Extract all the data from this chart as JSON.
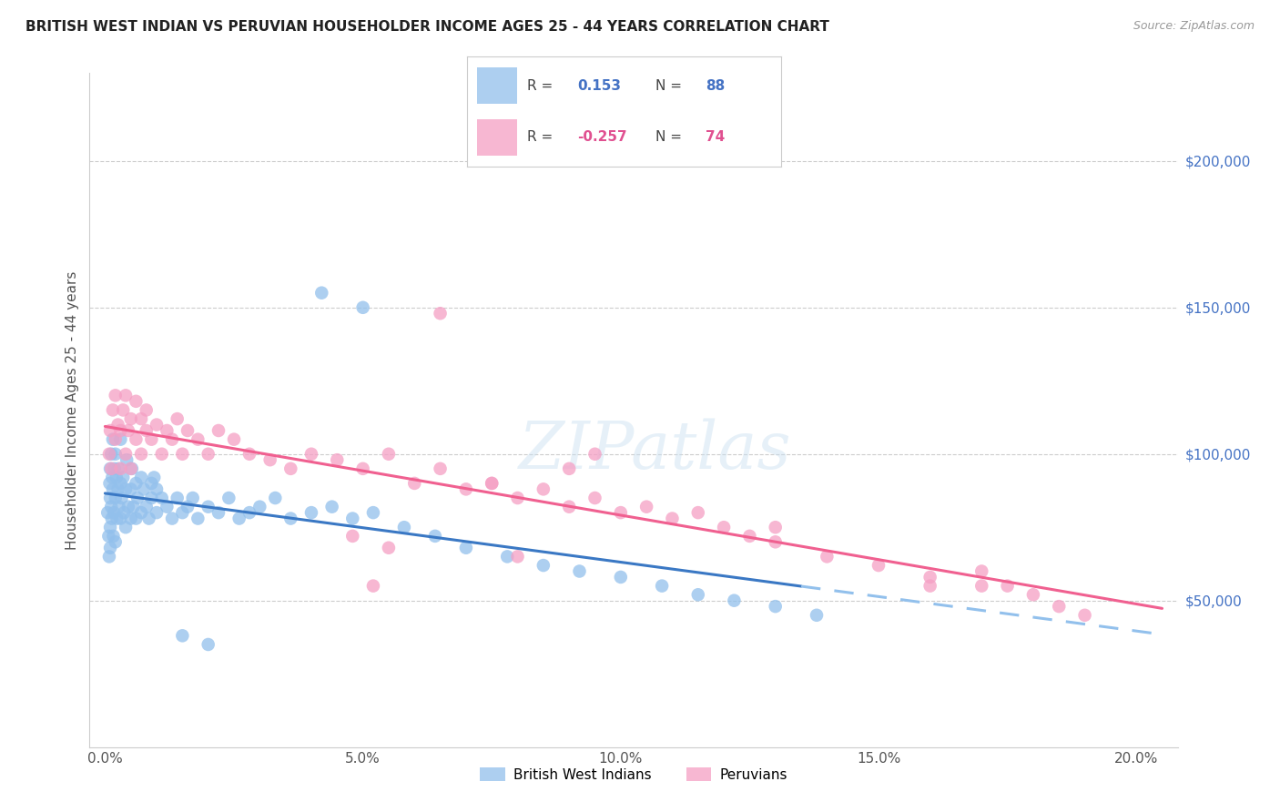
{
  "title": "BRITISH WEST INDIAN VS PERUVIAN HOUSEHOLDER INCOME AGES 25 - 44 YEARS CORRELATION CHART",
  "source": "Source: ZipAtlas.com",
  "ylabel": "Householder Income Ages 25 - 44 years",
  "xlabel_ticks": [
    "0.0%",
    "5.0%",
    "10.0%",
    "15.0%",
    "20.0%"
  ],
  "xlabel_vals": [
    0.0,
    0.05,
    0.1,
    0.15,
    0.2
  ],
  "ytick_labels": [
    "$50,000",
    "$100,000",
    "$150,000",
    "$200,000"
  ],
  "ytick_vals": [
    50000,
    100000,
    150000,
    200000
  ],
  "ylim": [
    0,
    230000
  ],
  "xlim": [
    -0.003,
    0.208
  ],
  "r_blue": 0.153,
  "n_blue": 88,
  "r_pink": -0.257,
  "n_pink": 74,
  "legend_label_blue": "British West Indians",
  "legend_label_pink": "Peruvians",
  "blue_color": "#92c0ec",
  "pink_color": "#f59fc4",
  "trendline_blue_solid_color": "#3a78c4",
  "trendline_pink_solid_color": "#f06090",
  "trendline_blue_dash_color": "#92c0ec",
  "watermark": "ZIPatlas",
  "blue_scatter_x": [
    0.0005,
    0.0007,
    0.0008,
    0.0009,
    0.001,
    0.001,
    0.001,
    0.001,
    0.0012,
    0.0012,
    0.0013,
    0.0014,
    0.0015,
    0.0015,
    0.0016,
    0.0017,
    0.0018,
    0.002,
    0.002,
    0.002,
    0.0022,
    0.0023,
    0.0025,
    0.0026,
    0.0027,
    0.003,
    0.003,
    0.003,
    0.0032,
    0.0035,
    0.0037,
    0.004,
    0.004,
    0.0042,
    0.0045,
    0.005,
    0.005,
    0.0052,
    0.0055,
    0.006,
    0.006,
    0.0063,
    0.007,
    0.007,
    0.0075,
    0.008,
    0.0085,
    0.009,
    0.009,
    0.0095,
    0.01,
    0.01,
    0.011,
    0.012,
    0.013,
    0.014,
    0.015,
    0.016,
    0.017,
    0.018,
    0.02,
    0.022,
    0.024,
    0.026,
    0.028,
    0.03,
    0.033,
    0.036,
    0.04,
    0.044,
    0.048,
    0.052,
    0.058,
    0.064,
    0.07,
    0.078,
    0.085,
    0.092,
    0.1,
    0.108,
    0.115,
    0.122,
    0.13,
    0.138,
    0.042,
    0.05,
    0.015,
    0.02
  ],
  "blue_scatter_y": [
    80000,
    72000,
    65000,
    90000,
    68000,
    85000,
    95000,
    75000,
    82000,
    100000,
    78000,
    92000,
    88000,
    105000,
    72000,
    80000,
    95000,
    85000,
    70000,
    100000,
    92000,
    78000,
    88000,
    95000,
    82000,
    78000,
    90000,
    105000,
    85000,
    92000,
    80000,
    88000,
    75000,
    98000,
    82000,
    88000,
    78000,
    95000,
    82000,
    90000,
    78000,
    85000,
    92000,
    80000,
    88000,
    82000,
    78000,
    90000,
    85000,
    92000,
    80000,
    88000,
    85000,
    82000,
    78000,
    85000,
    80000,
    82000,
    85000,
    78000,
    82000,
    80000,
    85000,
    78000,
    80000,
    82000,
    85000,
    78000,
    80000,
    82000,
    78000,
    80000,
    75000,
    72000,
    68000,
    65000,
    62000,
    60000,
    58000,
    55000,
    52000,
    50000,
    48000,
    45000,
    155000,
    150000,
    38000,
    35000
  ],
  "pink_scatter_x": [
    0.0008,
    0.001,
    0.0012,
    0.0015,
    0.002,
    0.002,
    0.0025,
    0.003,
    0.003,
    0.0035,
    0.004,
    0.004,
    0.0045,
    0.005,
    0.005,
    0.006,
    0.006,
    0.007,
    0.007,
    0.008,
    0.008,
    0.009,
    0.01,
    0.011,
    0.012,
    0.013,
    0.014,
    0.015,
    0.016,
    0.018,
    0.02,
    0.022,
    0.025,
    0.028,
    0.032,
    0.036,
    0.04,
    0.045,
    0.05,
    0.055,
    0.06,
    0.065,
    0.07,
    0.075,
    0.08,
    0.085,
    0.09,
    0.095,
    0.1,
    0.105,
    0.11,
    0.115,
    0.12,
    0.125,
    0.13,
    0.14,
    0.15,
    0.16,
    0.17,
    0.18,
    0.185,
    0.19,
    0.095,
    0.065,
    0.075,
    0.048,
    0.055,
    0.08,
    0.052,
    0.17,
    0.175,
    0.16,
    0.09,
    0.13
  ],
  "pink_scatter_y": [
    100000,
    108000,
    95000,
    115000,
    105000,
    120000,
    110000,
    95000,
    108000,
    115000,
    100000,
    120000,
    108000,
    95000,
    112000,
    105000,
    118000,
    100000,
    112000,
    108000,
    115000,
    105000,
    110000,
    100000,
    108000,
    105000,
    112000,
    100000,
    108000,
    105000,
    100000,
    108000,
    105000,
    100000,
    98000,
    95000,
    100000,
    98000,
    95000,
    100000,
    90000,
    95000,
    88000,
    90000,
    85000,
    88000,
    82000,
    85000,
    80000,
    82000,
    78000,
    80000,
    75000,
    72000,
    70000,
    65000,
    62000,
    58000,
    55000,
    52000,
    48000,
    45000,
    100000,
    148000,
    90000,
    72000,
    68000,
    65000,
    55000,
    60000,
    55000,
    55000,
    95000,
    75000
  ]
}
